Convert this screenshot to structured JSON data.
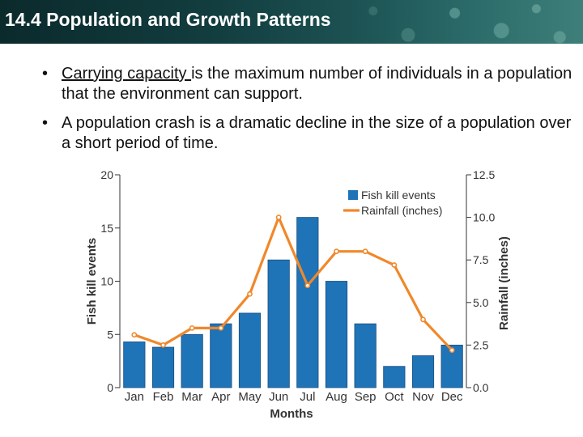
{
  "slide": {
    "title": "14.4 Population and Growth Patterns",
    "bullets": [
      {
        "underlined": "Carrying capacity ",
        "rest": "is the maximum number of individuals in a population that the environment can support."
      },
      {
        "underlined": "",
        "rest": "A population crash is a dramatic decline in the size of a population over a short period of time."
      }
    ],
    "bullet_glyph": "•"
  },
  "chart_data": {
    "type": "bar",
    "categories": [
      "Jan",
      "Feb",
      "Mar",
      "Apr",
      "May",
      "Jun",
      "Jul",
      "Aug",
      "Sep",
      "Oct",
      "Nov",
      "Dec"
    ],
    "series": [
      {
        "name": "Fish kill events",
        "type": "bar",
        "axis": "left",
        "color": "#1f73b7",
        "values": [
          4.3,
          3.8,
          5,
          6,
          7,
          12,
          16,
          10,
          6,
          2,
          3,
          4
        ]
      },
      {
        "name": "Rainfall (inches)",
        "type": "line",
        "axis": "right",
        "color": "#f0882a",
        "values": [
          3.1,
          2.5,
          3.5,
          3.5,
          5.5,
          10.0,
          6.0,
          8.0,
          8.0,
          7.2,
          4.0,
          2.2
        ]
      }
    ],
    "xlabel": "Months",
    "ylabel": "Fish kill events",
    "y2label": "Rainfall (inches)",
    "ylim": [
      0,
      20
    ],
    "y2lim": [
      0,
      12.5
    ],
    "yticks": [
      "0",
      "5",
      "10",
      "15",
      "20"
    ],
    "y2ticks": [
      "0.0",
      "2.5",
      "5.0",
      "7.5",
      "10.0",
      "12.5"
    ],
    "legend_position": "top-right"
  }
}
